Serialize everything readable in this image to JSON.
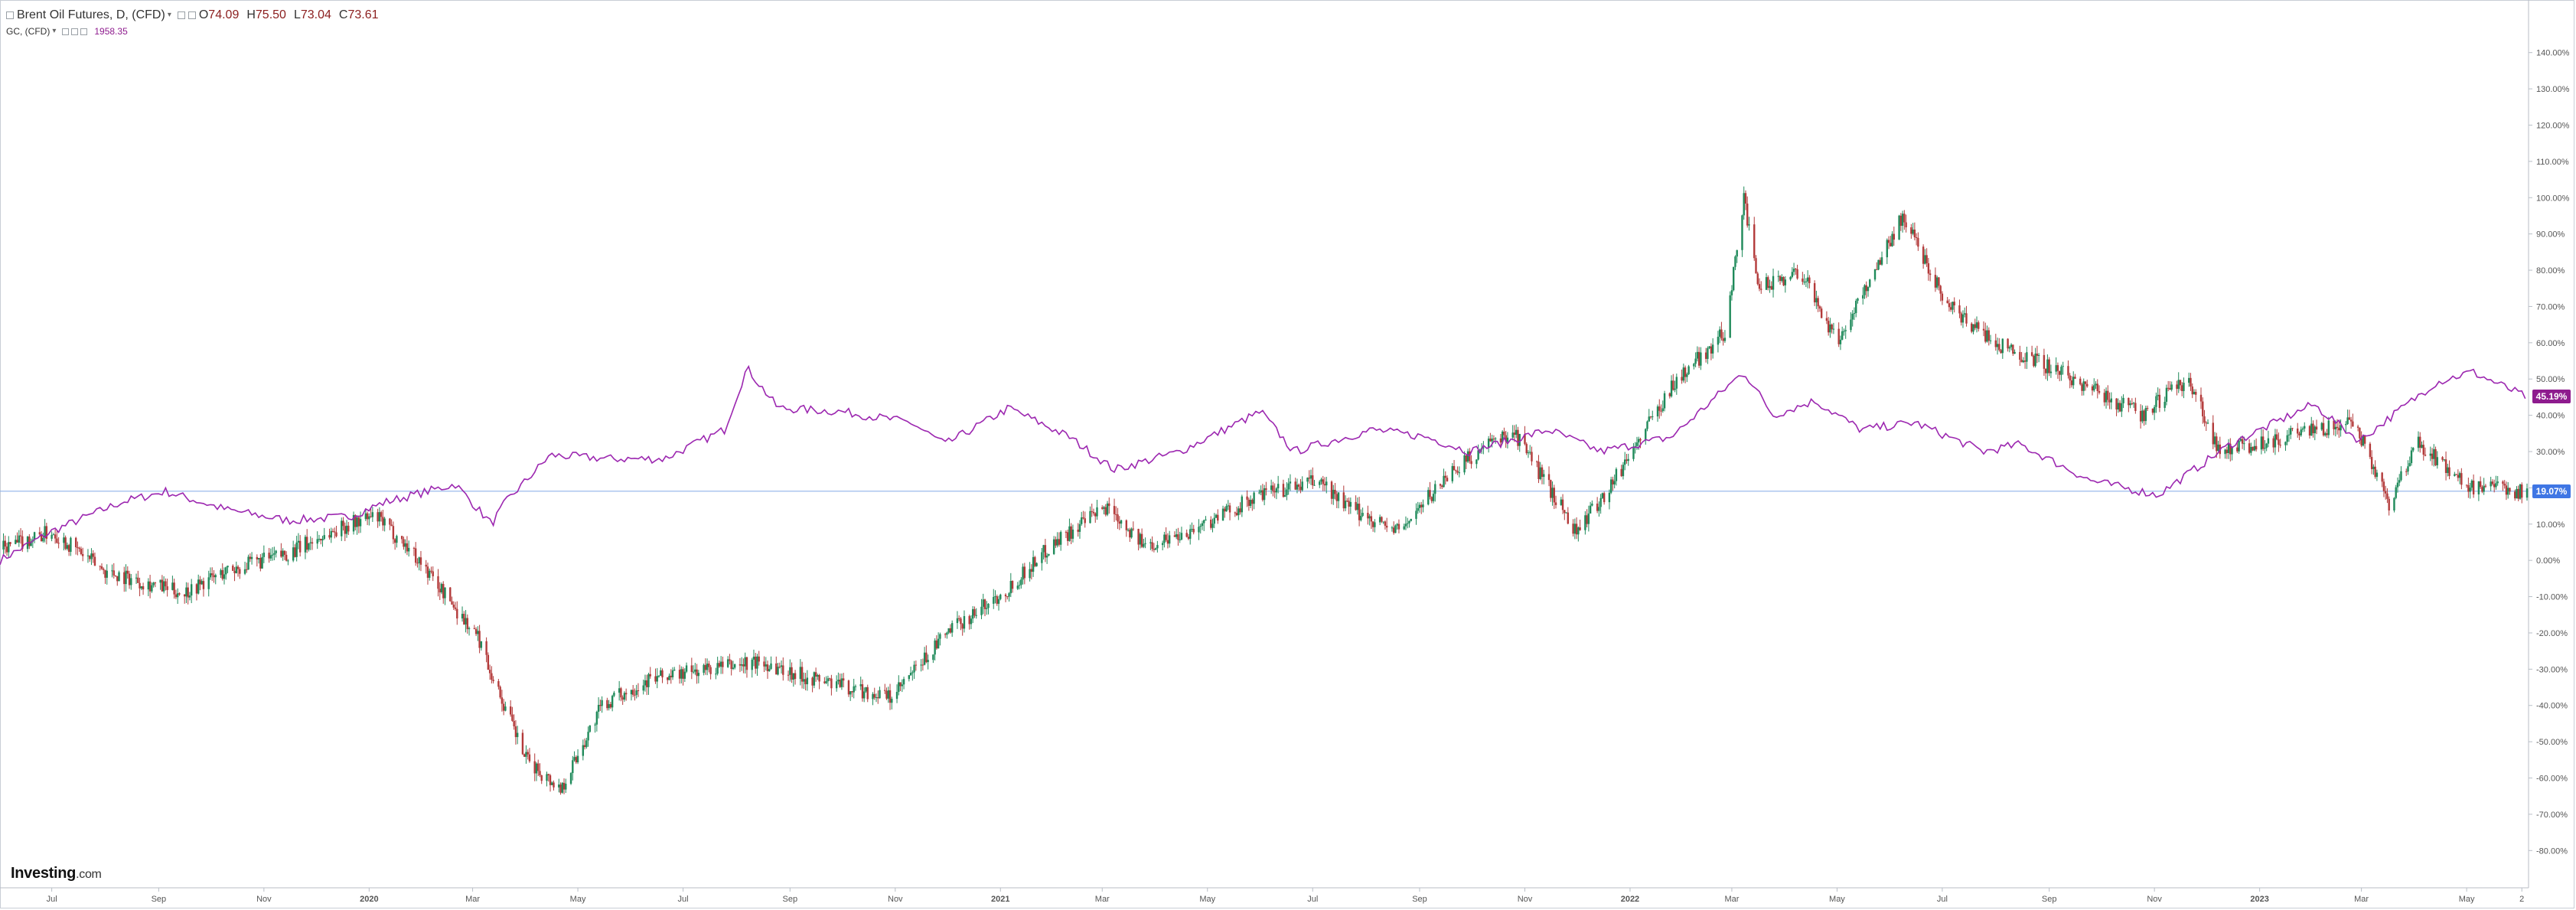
{
  "legend": {
    "primary": {
      "title": "Brent Oil Futures, D, (CFD)",
      "o_key": "O",
      "o": "74.09",
      "h_key": "H",
      "h": "75.50",
      "l_key": "L",
      "l": "73.04",
      "c_key": "C",
      "c": "73.61"
    },
    "secondary": {
      "title": "GC, (CFD)",
      "value": "1958.35"
    }
  },
  "logo": {
    "brand": "Investing",
    "suffix": ".com"
  },
  "price_tags": {
    "gold": "45.19%",
    "brent": "19.07%"
  },
  "colors": {
    "up": "#1f8a5a",
    "down": "#b33a3a",
    "gold_line": "#9c27b0",
    "hline": "#90b4ea",
    "axis_text": "#555555",
    "tag_gold": "#8e1b8e",
    "tag_brent": "#3f76e4"
  },
  "chart_data": {
    "type": "line",
    "ylim": [
      -85,
      145
    ],
    "y_ticks": [
      "140.00%",
      "130.00%",
      "120.00%",
      "110.00%",
      "100.00%",
      "90.00%",
      "80.00%",
      "70.00%",
      "60.00%",
      "50.00%",
      "40.00%",
      "30.00%",
      "20.00%",
      "10.00%",
      "0.00%",
      "-10.00%",
      "-20.00%",
      "-30.00%",
      "-40.00%",
      "-50.00%",
      "-60.00%",
      "-70.00%",
      "-80.00%"
    ],
    "x_ticks": [
      "Jul",
      "Sep",
      "Nov",
      "2020",
      "Mar",
      "May",
      "Jul",
      "Sep",
      "Nov",
      "2021",
      "Mar",
      "May",
      "Jul",
      "Sep",
      "Nov",
      "2022",
      "Mar",
      "May",
      "Jul",
      "Sep",
      "Nov",
      "2023",
      "Mar",
      "May",
      "2"
    ],
    "x_range": [
      "2019-06-01",
      "2023-06-05"
    ],
    "reference_line": 19.07,
    "series": [
      {
        "name": "Brent Oil Futures, D, (CFD)",
        "kind": "candles",
        "x": [
          "2019-06-01",
          "2019-07-01",
          "2019-08-01",
          "2019-09-15",
          "2019-10-10",
          "2019-11-15",
          "2019-12-20",
          "2020-01-05",
          "2020-01-25",
          "2020-02-15",
          "2020-03-05",
          "2020-03-15",
          "2020-04-01",
          "2020-04-21",
          "2020-05-15",
          "2020-06-10",
          "2020-07-15",
          "2020-08-15",
          "2020-09-10",
          "2020-10-30",
          "2020-12-01",
          "2021-01-05",
          "2021-02-01",
          "2021-03-05",
          "2021-03-25",
          "2021-04-20",
          "2021-06-01",
          "2021-07-05",
          "2021-07-20",
          "2021-08-20",
          "2021-09-20",
          "2021-10-25",
          "2021-12-01",
          "2021-12-20",
          "2022-01-25",
          "2022-02-25",
          "2022-03-08",
          "2022-03-16",
          "2022-04-10",
          "2022-05-01",
          "2022-06-08",
          "2022-07-05",
          "2022-08-01",
          "2022-08-25",
          "2022-10-05",
          "2022-10-25",
          "2022-11-20",
          "2022-12-09",
          "2023-01-25",
          "2023-02-25",
          "2023-03-17",
          "2023-04-03",
          "2023-05-03",
          "2023-06-05"
        ],
        "values": [
          3,
          8,
          -3,
          -9,
          -3,
          2,
          10,
          12,
          3,
          -10,
          -22,
          -35,
          -55,
          -63,
          -40,
          -33,
          -30,
          -28,
          -32,
          -38,
          -20,
          -8,
          5,
          15,
          4,
          8,
          18,
          22,
          15,
          8,
          25,
          36,
          8,
          20,
          48,
          63,
          100,
          75,
          80,
          60,
          95,
          70,
          60,
          55,
          45,
          40,
          50,
          30,
          35,
          38,
          16,
          32,
          20,
          19
        ]
      },
      {
        "name": "GC, (CFD)",
        "kind": "line",
        "x": [
          "2019-06-01",
          "2019-07-01",
          "2019-08-10",
          "2019-09-05",
          "2019-10-10",
          "2019-11-15",
          "2019-12-20",
          "2020-01-10",
          "2020-02-20",
          "2020-03-12",
          "2020-03-20",
          "2020-04-15",
          "2020-05-20",
          "2020-06-20",
          "2020-07-25",
          "2020-08-07",
          "2020-08-25",
          "2020-10-01",
          "2020-11-10",
          "2020-11-30",
          "2021-01-06",
          "2021-02-10",
          "2021-03-08",
          "2021-04-15",
          "2021-06-01",
          "2021-06-20",
          "2021-08-05",
          "2021-09-05",
          "2021-09-30",
          "2021-11-15",
          "2021-12-15",
          "2022-01-25",
          "2022-03-08",
          "2022-03-25",
          "2022-04-18",
          "2022-05-15",
          "2022-06-15",
          "2022-07-25",
          "2022-08-15",
          "2022-09-25",
          "2022-11-03",
          "2022-12-15",
          "2023-02-01",
          "2023-02-28",
          "2023-04-13",
          "2023-05-04",
          "2023-06-05"
        ],
        "values": [
          0,
          8,
          16,
          19,
          14,
          11,
          12,
          16,
          21,
          10,
          16,
          29,
          28,
          28,
          36,
          53,
          42,
          41,
          38,
          32,
          42,
          34,
          25,
          30,
          41,
          30,
          36,
          34,
          30,
          36,
          30,
          34,
          52,
          40,
          44,
          36,
          38,
          30,
          32,
          22,
          18,
          32,
          43,
          33,
          49,
          52,
          45
        ]
      }
    ]
  }
}
